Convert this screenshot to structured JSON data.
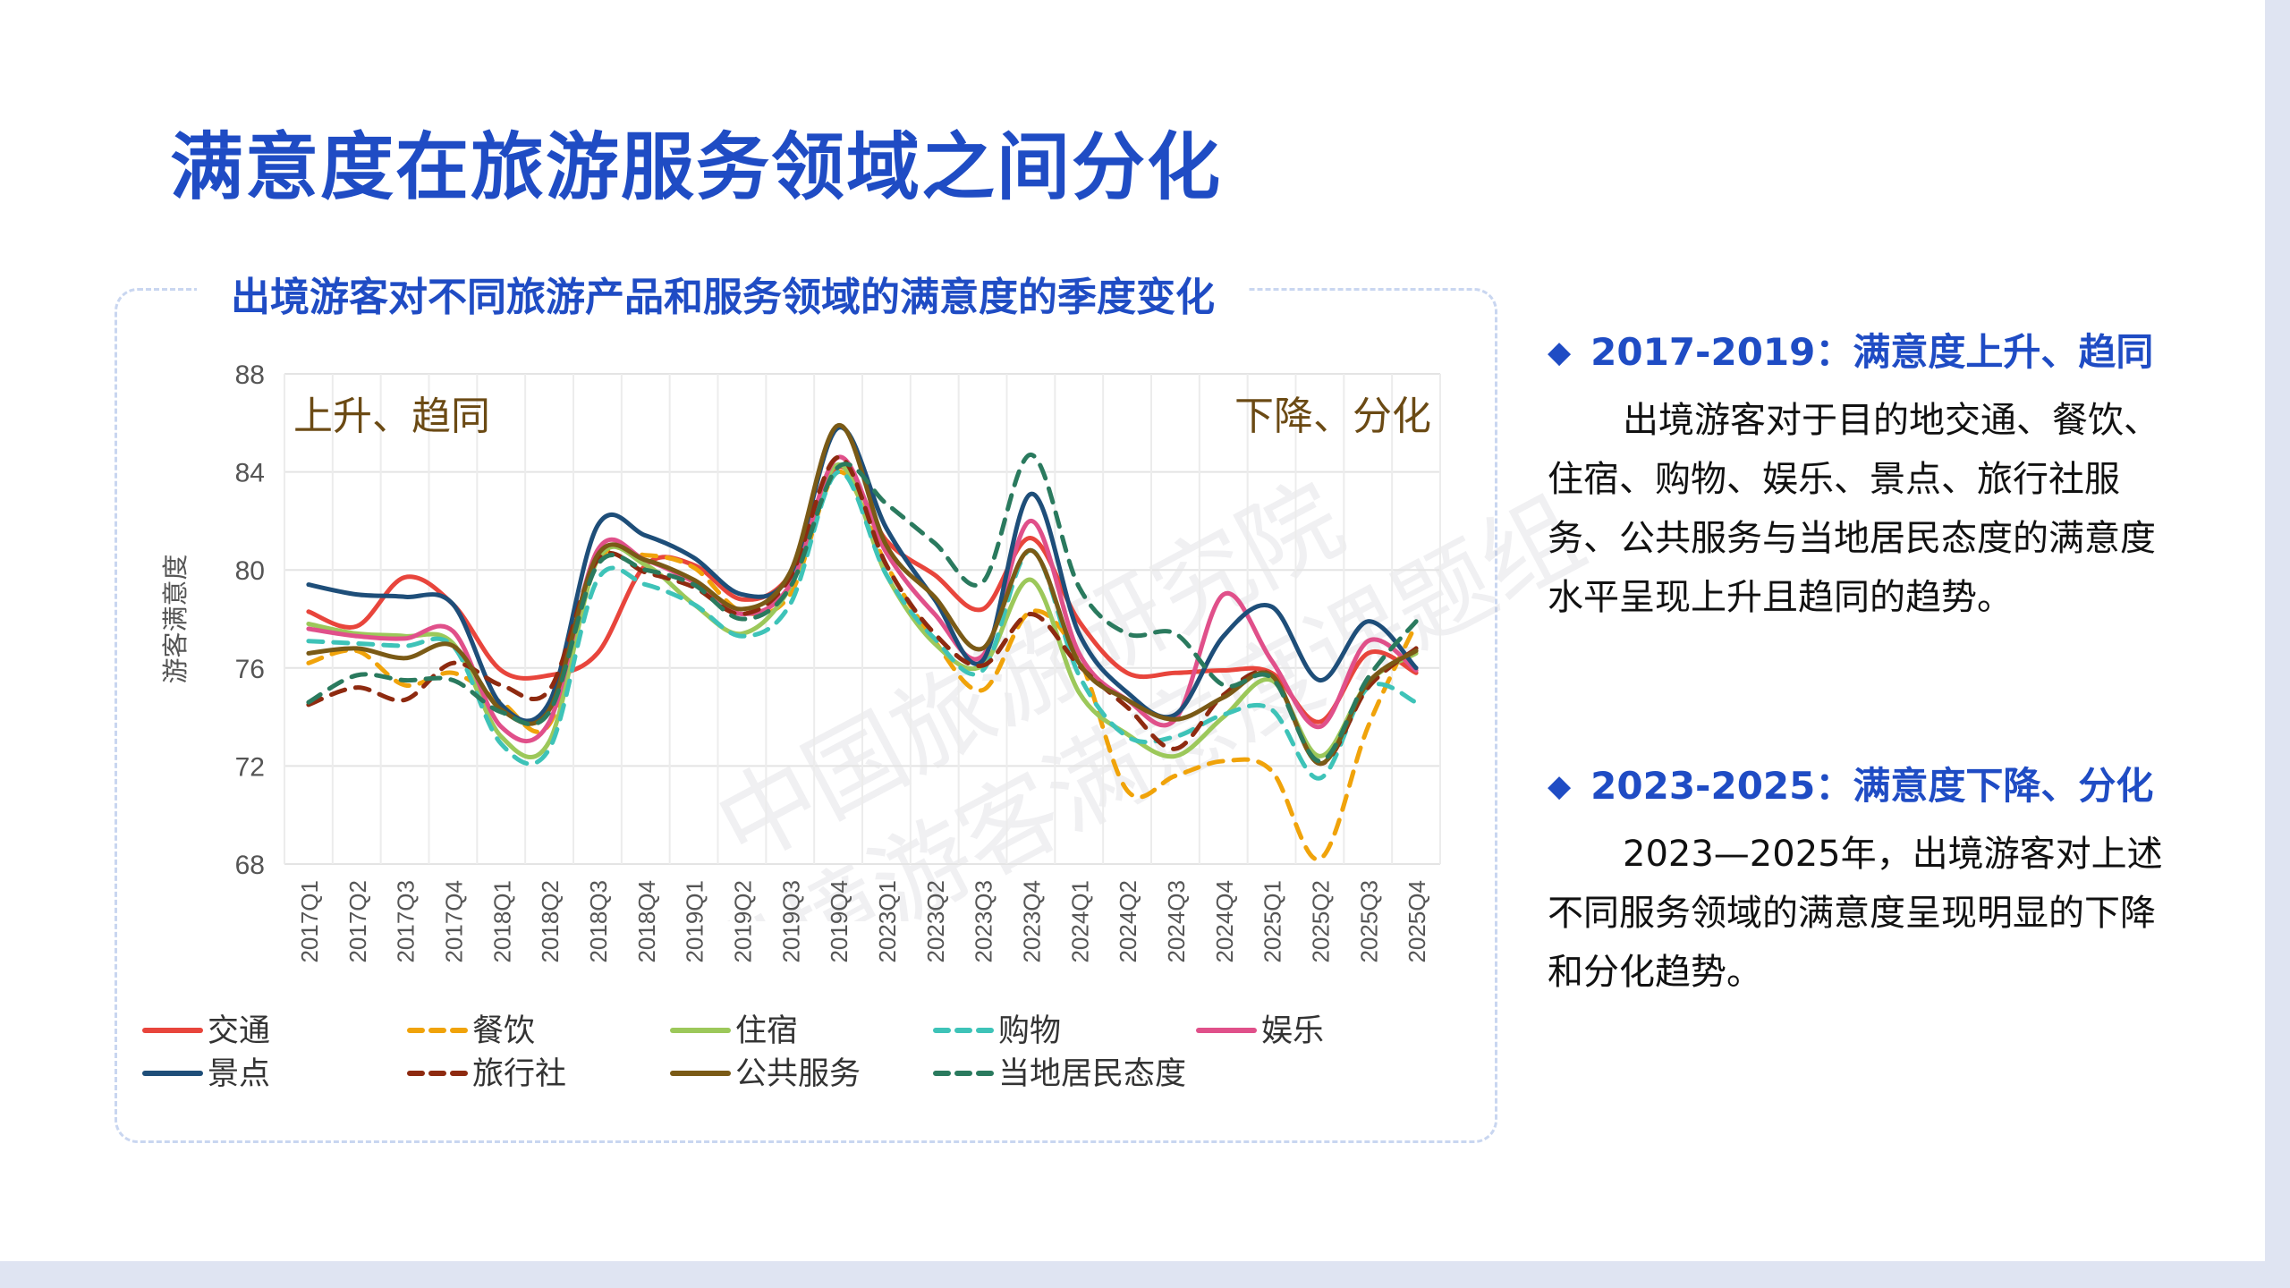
{
  "page": {
    "title": "满意度在旅游服务领域之间分化"
  },
  "watermark": {
    "line1": "中国旅游研究院",
    "line2": "出境游客满意度课题组"
  },
  "chart_data": {
    "type": "line",
    "title": "出境游客对不同旅游产品和服务领域的满意度的季度变化",
    "xlabel": "",
    "ylabel": "游客满意度",
    "ylim": [
      68,
      88
    ],
    "yticks": [
      68,
      72,
      76,
      80,
      84,
      88
    ],
    "grid": true,
    "legend_position": "bottom",
    "categories": [
      "2017Q1",
      "2017Q2",
      "2017Q3",
      "2017Q4",
      "2018Q1",
      "2018Q2",
      "2018Q3",
      "2018Q4",
      "2019Q1",
      "2019Q2",
      "2019Q3",
      "2019Q4",
      "2023Q1",
      "2023Q2",
      "2023Q3",
      "2023Q4",
      "2024Q1",
      "2024Q2",
      "2024Q3",
      "2024Q4",
      "2025Q1",
      "2025Q2",
      "2025Q3",
      "2025Q4"
    ],
    "annotations": [
      {
        "text": "上升、趋同",
        "anchor": "top-left"
      },
      {
        "text": "下降、分化",
        "anchor": "top-right"
      }
    ],
    "series": [
      {
        "name": "交通",
        "color": "#e8453c",
        "dash": "solid",
        "values": [
          78.3,
          77.7,
          79.7,
          78.6,
          75.9,
          75.7,
          76.6,
          80.2,
          80.2,
          78.8,
          79.8,
          84.2,
          81.2,
          79.8,
          78.4,
          81.3,
          77.9,
          75.8,
          75.8,
          75.9,
          75.8,
          73.8,
          76.6,
          75.8
        ]
      },
      {
        "name": "餐饮",
        "color": "#f0a30a",
        "dash": "dash",
        "values": [
          76.2,
          76.7,
          75.3,
          75.8,
          74.6,
          73.7,
          80.3,
          80.6,
          80.1,
          78.3,
          79.0,
          84.0,
          80.2,
          77.1,
          75.1,
          78.3,
          76.4,
          71.0,
          71.6,
          72.2,
          71.8,
          68.2,
          73.6,
          77.8
        ]
      },
      {
        "name": "住宿",
        "color": "#9cc85a",
        "dash": "solid",
        "values": [
          77.8,
          77.4,
          77.3,
          77.0,
          73.2,
          73.0,
          80.4,
          80.2,
          78.6,
          77.4,
          79.3,
          84.3,
          79.8,
          77.0,
          76.1,
          79.6,
          75.0,
          73.3,
          72.4,
          74.0,
          75.5,
          72.4,
          75.4,
          76.6
        ]
      },
      {
        "name": "购物",
        "color": "#3ec3b8",
        "dash": "dash",
        "values": [
          77.1,
          77.0,
          76.9,
          76.9,
          72.9,
          72.7,
          79.6,
          79.4,
          78.6,
          77.3,
          78.6,
          84.0,
          79.8,
          77.2,
          75.9,
          80.8,
          75.7,
          73.2,
          73.2,
          74.1,
          74.3,
          71.5,
          75.2,
          74.6
        ]
      },
      {
        "name": "娱乐",
        "color": "#e0508a",
        "dash": "solid",
        "values": [
          77.6,
          77.3,
          77.2,
          77.5,
          73.6,
          73.8,
          80.8,
          80.4,
          79.5,
          78.2,
          79.4,
          84.6,
          80.7,
          78.2,
          76.5,
          82.0,
          76.6,
          74.7,
          73.9,
          79.0,
          76.3,
          73.6,
          77.1,
          75.9
        ]
      },
      {
        "name": "景点",
        "color": "#1e4e79",
        "dash": "solid",
        "values": [
          79.4,
          79.0,
          78.9,
          78.6,
          74.5,
          74.6,
          81.8,
          81.4,
          80.5,
          79.0,
          79.8,
          85.8,
          81.7,
          78.8,
          76.3,
          83.1,
          77.4,
          75.0,
          74.1,
          77.3,
          78.5,
          75.5,
          77.9,
          76.0
        ]
      },
      {
        "name": "旅行社",
        "color": "#8e2a10",
        "dash": "dash",
        "values": [
          74.5,
          75.2,
          74.7,
          76.2,
          75.3,
          75.1,
          80.4,
          79.9,
          79.3,
          78.2,
          79.7,
          84.6,
          80.2,
          77.4,
          76.1,
          78.2,
          76.1,
          74.4,
          72.7,
          74.9,
          75.7,
          72.1,
          75.2,
          76.8
        ]
      },
      {
        "name": "公共服务",
        "color": "#7a5a16",
        "dash": "solid",
        "values": [
          76.6,
          76.8,
          76.4,
          76.9,
          74.3,
          74.3,
          80.6,
          80.4,
          79.6,
          78.4,
          79.9,
          85.9,
          81.0,
          78.9,
          76.8,
          80.8,
          76.2,
          74.7,
          73.9,
          74.8,
          75.7,
          72.1,
          75.4,
          76.7
        ]
      },
      {
        "name": "当地居民态度",
        "color": "#2a7a5e",
        "dash": "dash",
        "values": [
          74.6,
          75.7,
          75.5,
          75.5,
          74.2,
          74.2,
          80.2,
          80.0,
          79.4,
          78.0,
          79.3,
          84.2,
          82.7,
          81.1,
          79.5,
          84.7,
          79.3,
          77.4,
          77.4,
          75.3,
          75.6,
          72.2,
          75.6,
          77.9
        ]
      }
    ]
  },
  "points": [
    {
      "heading": "2017-2019：满意度上升、趋同",
      "body": "出境游客对于目的地交通、餐饮、住宿、购物、娱乐、景点、旅行社服务、公共服务与当地居民态度的满意度水平呈现上升且趋同的趋势。"
    },
    {
      "heading": "2023-2025：满意度下降、分化",
      "body": "2023—2025年，出境游客对上述不同服务领域的满意度呈现明显的下降和分化趋势。"
    }
  ]
}
